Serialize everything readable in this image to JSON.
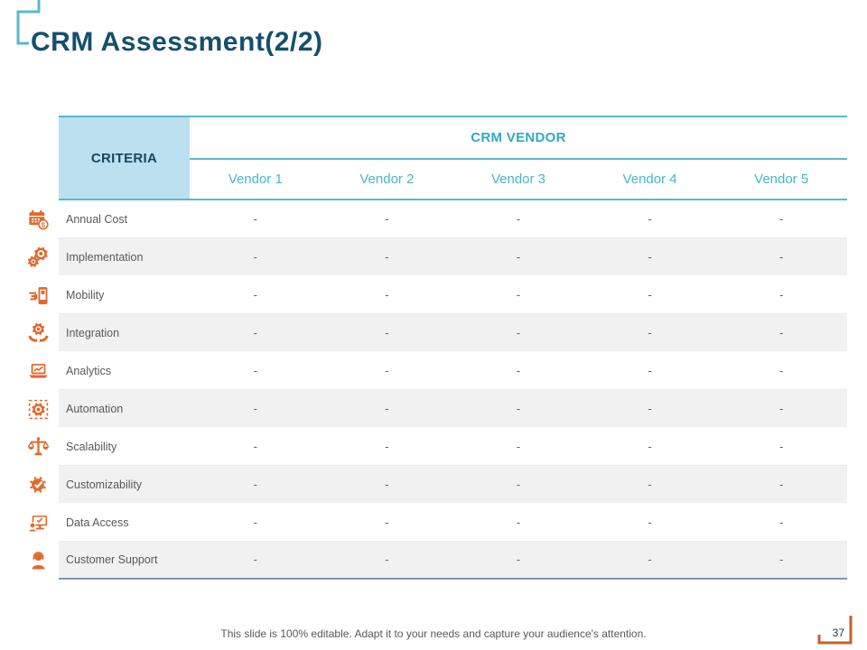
{
  "slide": {
    "title": "CRM Assessment(2/2)",
    "footer_note": "This slide is 100% editable. Adapt it to your needs and capture your audience's attention.",
    "page_number": "37"
  },
  "table": {
    "criteria_header": "CRITERIA",
    "group_header": "CRM VENDOR",
    "vendors": [
      "Vendor 1",
      "Vendor 2",
      "Vendor 3",
      "Vendor 4",
      "Vendor 5"
    ],
    "rows": [
      {
        "icon": "calendar-dollar-icon",
        "label": "Annual Cost",
        "values": [
          "-",
          "-",
          "-",
          "-",
          "-"
        ]
      },
      {
        "icon": "gears-icon",
        "label": "Implementation",
        "values": [
          "-",
          "-",
          "-",
          "-",
          "-"
        ]
      },
      {
        "icon": "mobile-phone-icon",
        "label": "Mobility",
        "values": [
          "-",
          "-",
          "-",
          "-",
          "-"
        ]
      },
      {
        "icon": "hands-gear-icon",
        "label": "Integration",
        "values": [
          "-",
          "-",
          "-",
          "-",
          "-"
        ]
      },
      {
        "icon": "laptop-chart-icon",
        "label": "Analytics",
        "values": [
          "-",
          "-",
          "-",
          "-",
          "-"
        ]
      },
      {
        "icon": "gear-dashed-icon",
        "label": "Automation",
        "values": [
          "-",
          "-",
          "-",
          "-",
          "-"
        ]
      },
      {
        "icon": "balance-scale-icon",
        "label": "Scalability",
        "values": [
          "-",
          "-",
          "-",
          "-",
          "-"
        ]
      },
      {
        "icon": "gear-check-icon",
        "label": "Customizability",
        "values": [
          "-",
          "-",
          "-",
          "-",
          "-"
        ]
      },
      {
        "icon": "monitor-user-icon",
        "label": "Data Access",
        "values": [
          "-",
          "-",
          "-",
          "-",
          "-"
        ]
      },
      {
        "icon": "support-agent-icon",
        "label": "Customer Support",
        "values": [
          "-",
          "-",
          "-",
          "-",
          "-"
        ]
      }
    ]
  },
  "colors": {
    "accent_teal": "#58BACB",
    "group_text": "#2FA9C6",
    "vendor_text": "#4BB4CD",
    "criteria_bg": "#BCE0F0",
    "criteria_text": "#17465F",
    "title_text": "#14506B",
    "icon_orange": "#E2692C",
    "bracket_orange": "#C2602F",
    "row_alt_bg": "#F1F1F1",
    "body_text": "#595959",
    "table_bottom_border": "#7E98A8"
  }
}
